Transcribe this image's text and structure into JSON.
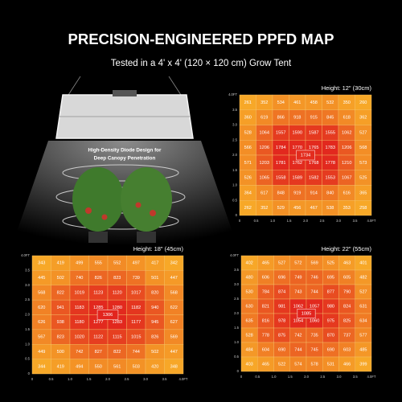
{
  "header": {
    "title": "PRECISION-ENGINEERED PPFD MAP",
    "subtitle": "Tested in a 4' x 4' (120 × 120 cm) Grow Tent"
  },
  "lamp": {
    "caption_line1": "High-Density Diode Design for",
    "caption_line2": "Deep Canopy Penetration"
  },
  "axis_ticks": [
    "0",
    "0.5",
    "1.0",
    "1.5",
    "2.0",
    "2.5",
    "3.0",
    "3.5",
    "4.0FT"
  ],
  "maps": [
    {
      "label": "Height: 12\" (30cm)",
      "center": 1734,
      "rows": [
        [
          261,
          352,
          534,
          461,
          458,
          532,
          350,
          260
        ],
        [
          360,
          619,
          866,
          918,
          915,
          845,
          618,
          362
        ],
        [
          528,
          1064,
          1557,
          1590,
          1587,
          1555,
          1062,
          527
        ],
        [
          566,
          1206,
          1784,
          1770,
          1765,
          1783,
          1206,
          568
        ],
        [
          571,
          1203,
          1781,
          1762,
          1768,
          1778,
          1210,
          573
        ],
        [
          526,
          1065,
          1558,
          1589,
          1582,
          1553,
          1067,
          525
        ],
        [
          364,
          617,
          848,
          919,
          914,
          840,
          616,
          365
        ],
        [
          262,
          352,
          529,
          456,
          467,
          538,
          353,
          258
        ]
      ]
    },
    {
      "label": "Height: 18\" (45cm)",
      "center": 1306,
      "rows": [
        [
          343,
          419,
          499,
          555,
          552,
          497,
          417,
          342
        ],
        [
          445,
          502,
          740,
          826,
          823,
          739,
          501,
          447
        ],
        [
          568,
          822,
          1019,
          1123,
          1120,
          1017,
          820,
          568
        ],
        [
          620,
          941,
          1183,
          1285,
          1280,
          1182,
          940,
          622
        ],
        [
          626,
          938,
          1180,
          1277,
          1283,
          1177,
          945,
          627
        ],
        [
          567,
          823,
          1020,
          1122,
          1115,
          1015,
          826,
          569
        ],
        [
          449,
          500,
          742,
          827,
          822,
          744,
          502,
          447
        ],
        [
          344,
          419,
          494,
          550,
          561,
          503,
          420,
          348
        ]
      ]
    },
    {
      "label": "Height: 22\" (55cm)",
      "center": 1085,
      "rows": [
        [
          402,
          465,
          527,
          572,
          569,
          525,
          463,
          401
        ],
        [
          480,
          606,
          696,
          749,
          746,
          695,
          605,
          482
        ],
        [
          530,
          784,
          874,
          743,
          744,
          877,
          790,
          527
        ],
        [
          630,
          821,
          981,
          1062,
          1057,
          980,
          824,
          631
        ],
        [
          635,
          816,
          978,
          1054,
          1060,
          975,
          825,
          634
        ],
        [
          528,
          778,
          875,
          742,
          735,
          870,
          737,
          577
        ],
        [
          484,
          604,
          690,
          744,
          745,
          690,
          603,
          485
        ],
        [
          403,
          465,
          522,
          574,
          578,
          531,
          466,
          399
        ]
      ]
    }
  ]
}
